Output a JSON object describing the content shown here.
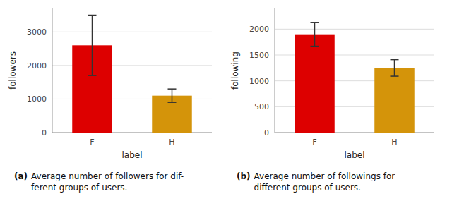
{
  "chart_data": [
    {
      "type": "bar",
      "categories": [
        "F",
        "H"
      ],
      "values": [
        2600,
        1100
      ],
      "errors": [
        900,
        200
      ],
      "colors": [
        "#dd0000",
        "#d4940a"
      ],
      "y_label": "followers",
      "x_label": "label",
      "ylim": [
        0,
        3700
      ],
      "yticks": [
        0,
        1000,
        2000,
        3000
      ],
      "grid": true,
      "caption_label": "(a)",
      "caption": "Average number of followers for dif-\nferent groups of users."
    },
    {
      "type": "bar",
      "categories": [
        "F",
        "H"
      ],
      "values": [
        1900,
        1250
      ],
      "errors": [
        230,
        160
      ],
      "colors": [
        "#dd0000",
        "#d4940a"
      ],
      "y_label": "following",
      "x_label": "label",
      "ylim": [
        0,
        2400
      ],
      "yticks": [
        0,
        500,
        1000,
        1500,
        2000
      ],
      "grid": true,
      "caption_label": "(b)",
      "caption": "Average number of followings for\ndifferent groups of users."
    }
  ]
}
